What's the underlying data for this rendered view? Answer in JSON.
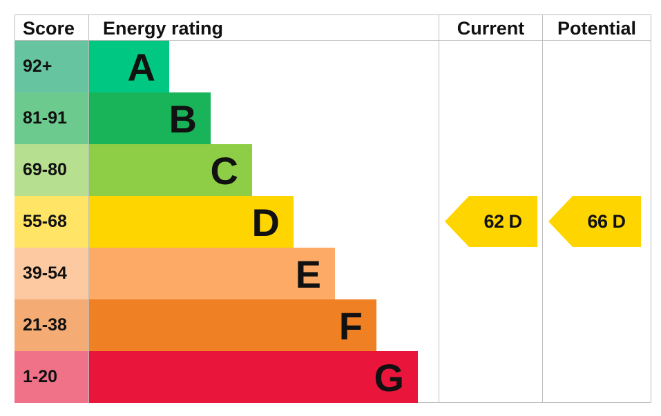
{
  "chart_data": {
    "type": "bar",
    "headers": {
      "score": "Score",
      "rating": "Energy rating",
      "current": "Current",
      "potential": "Potential"
    },
    "bands": [
      {
        "range": "92+",
        "letter": "A",
        "color": "#00c781",
        "score_color": "#66c5a0"
      },
      {
        "range": "81-91",
        "letter": "B",
        "color": "#19b459",
        "score_color": "#6dca8e"
      },
      {
        "range": "69-80",
        "letter": "C",
        "color": "#8dce46",
        "score_color": "#b6df8f"
      },
      {
        "range": "55-68",
        "letter": "D",
        "color": "#ffd500",
        "score_color": "#ffe466"
      },
      {
        "range": "39-54",
        "letter": "E",
        "color": "#fcaa65",
        "score_color": "#fdc9a0"
      },
      {
        "range": "21-38",
        "letter": "F",
        "color": "#ef8023",
        "score_color": "#f4ac74"
      },
      {
        "range": "1-20",
        "letter": "G",
        "color": "#e9153b",
        "score_color": "#f07289"
      }
    ],
    "current": {
      "value": 62,
      "band": "D",
      "label": "62 D",
      "color": "#ffd500"
    },
    "potential": {
      "value": 66,
      "band": "D",
      "label": "66 D",
      "color": "#ffd500"
    }
  }
}
